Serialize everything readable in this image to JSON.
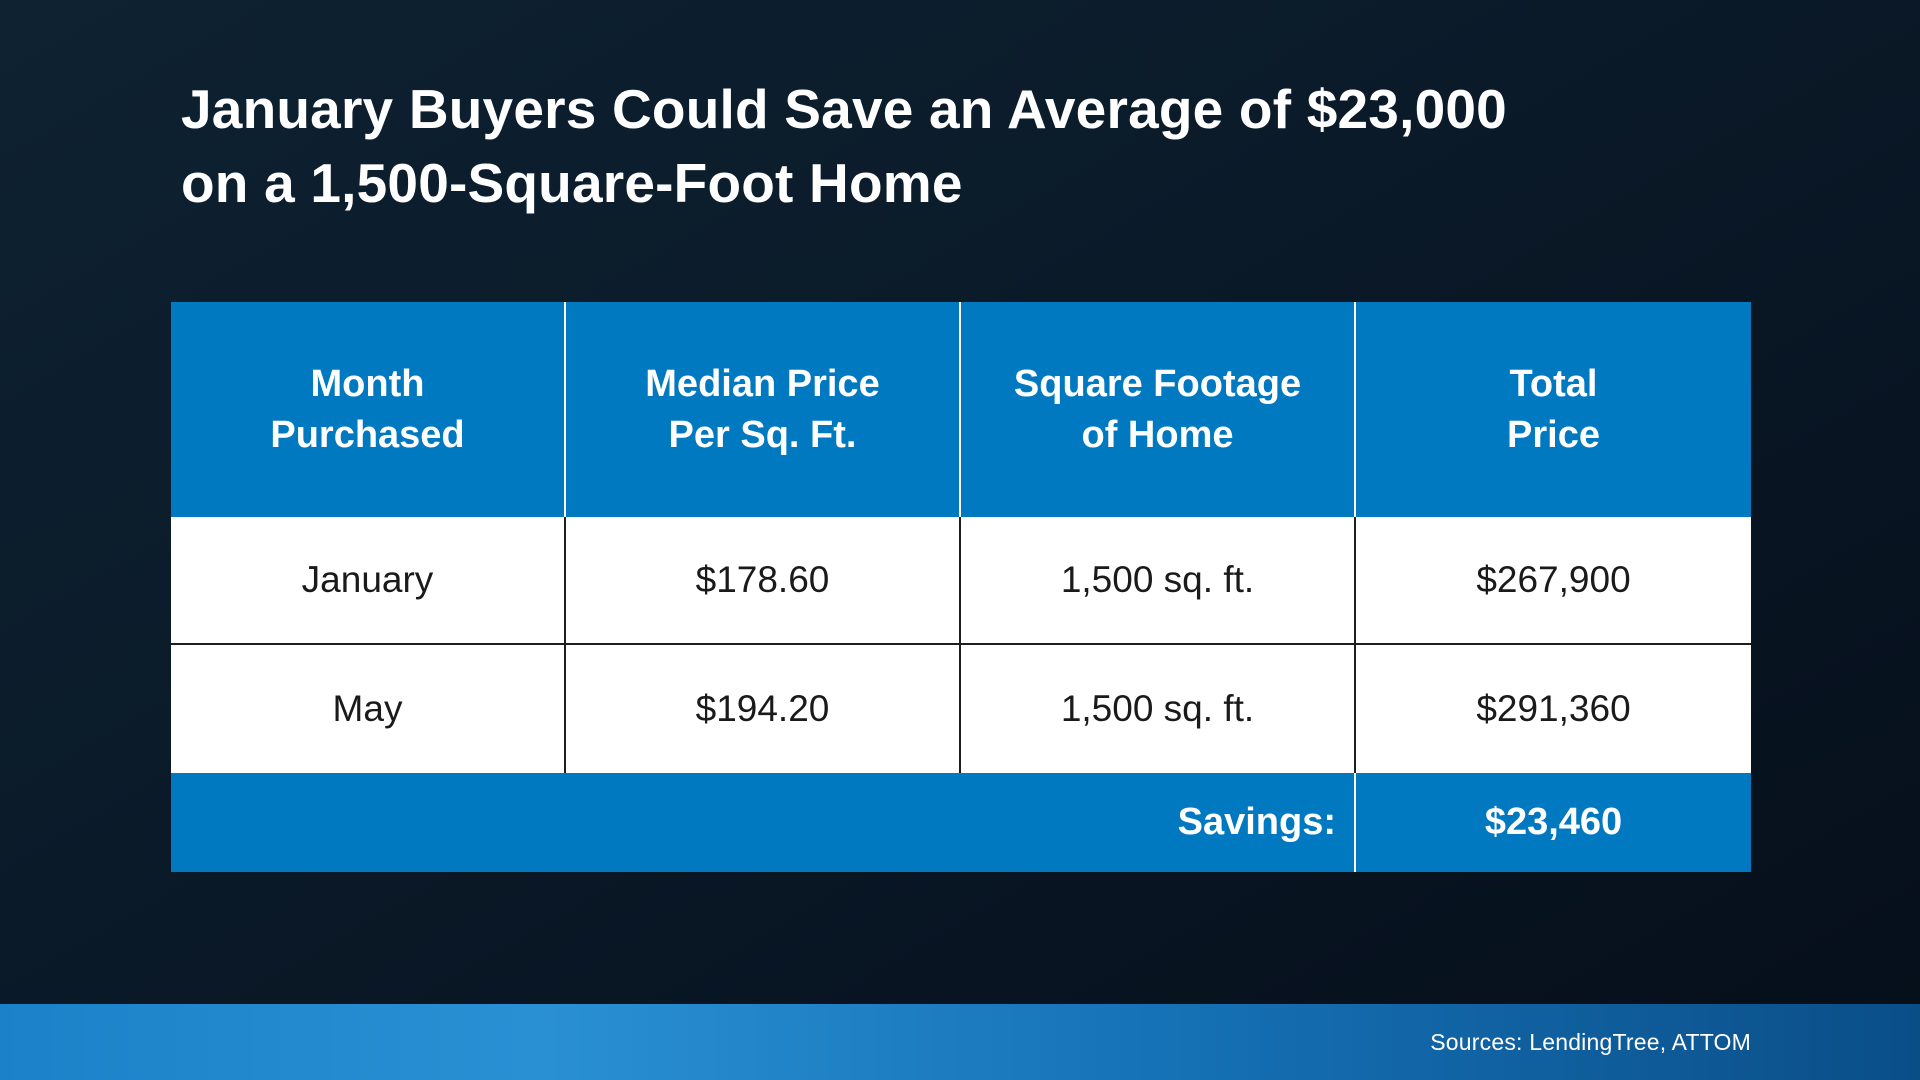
{
  "title": {
    "line1": "January Buyers Could Save an Average of $23,000",
    "line2": "on a 1,500-Square-Foot Home"
  },
  "table": {
    "headers": [
      {
        "line1": "Month",
        "line2": "Purchased"
      },
      {
        "line1": "Median Price",
        "line2": "Per Sq. Ft."
      },
      {
        "line1": "Square Footage",
        "line2": "of Home"
      },
      {
        "line1": "Total",
        "line2": "Price"
      }
    ],
    "rows": [
      [
        "January",
        "$178.60",
        "1,500 sq. ft.",
        "$267,900"
      ],
      [
        "May",
        "$194.20",
        "1,500 sq. ft.",
        "$291,360"
      ]
    ],
    "footer": {
      "label": "Savings:",
      "value": "$23,460"
    }
  },
  "footer_bar": {
    "sources": "Sources: LendingTree, ATTOM"
  },
  "colors": {
    "accent_blue": "#0079c1",
    "background_dark": "#0b1b2a",
    "row_white": "#ffffff",
    "text_dark": "#1a1a1a"
  },
  "chart_data": {
    "type": "table",
    "title": "January Buyers Could Save an Average of $23,000 on a 1,500-Square-Foot Home",
    "columns": [
      "Month Purchased",
      "Median Price Per Sq. Ft.",
      "Square Footage of Home",
      "Total Price"
    ],
    "rows": [
      {
        "month_purchased": "January",
        "median_price_per_sq_ft": 178.6,
        "square_footage_of_home": 1500,
        "total_price": 267900
      },
      {
        "month_purchased": "May",
        "median_price_per_sq_ft": 194.2,
        "square_footage_of_home": 1500,
        "total_price": 291360
      }
    ],
    "savings": 23460,
    "sources": "Sources: LendingTree, ATTOM"
  }
}
